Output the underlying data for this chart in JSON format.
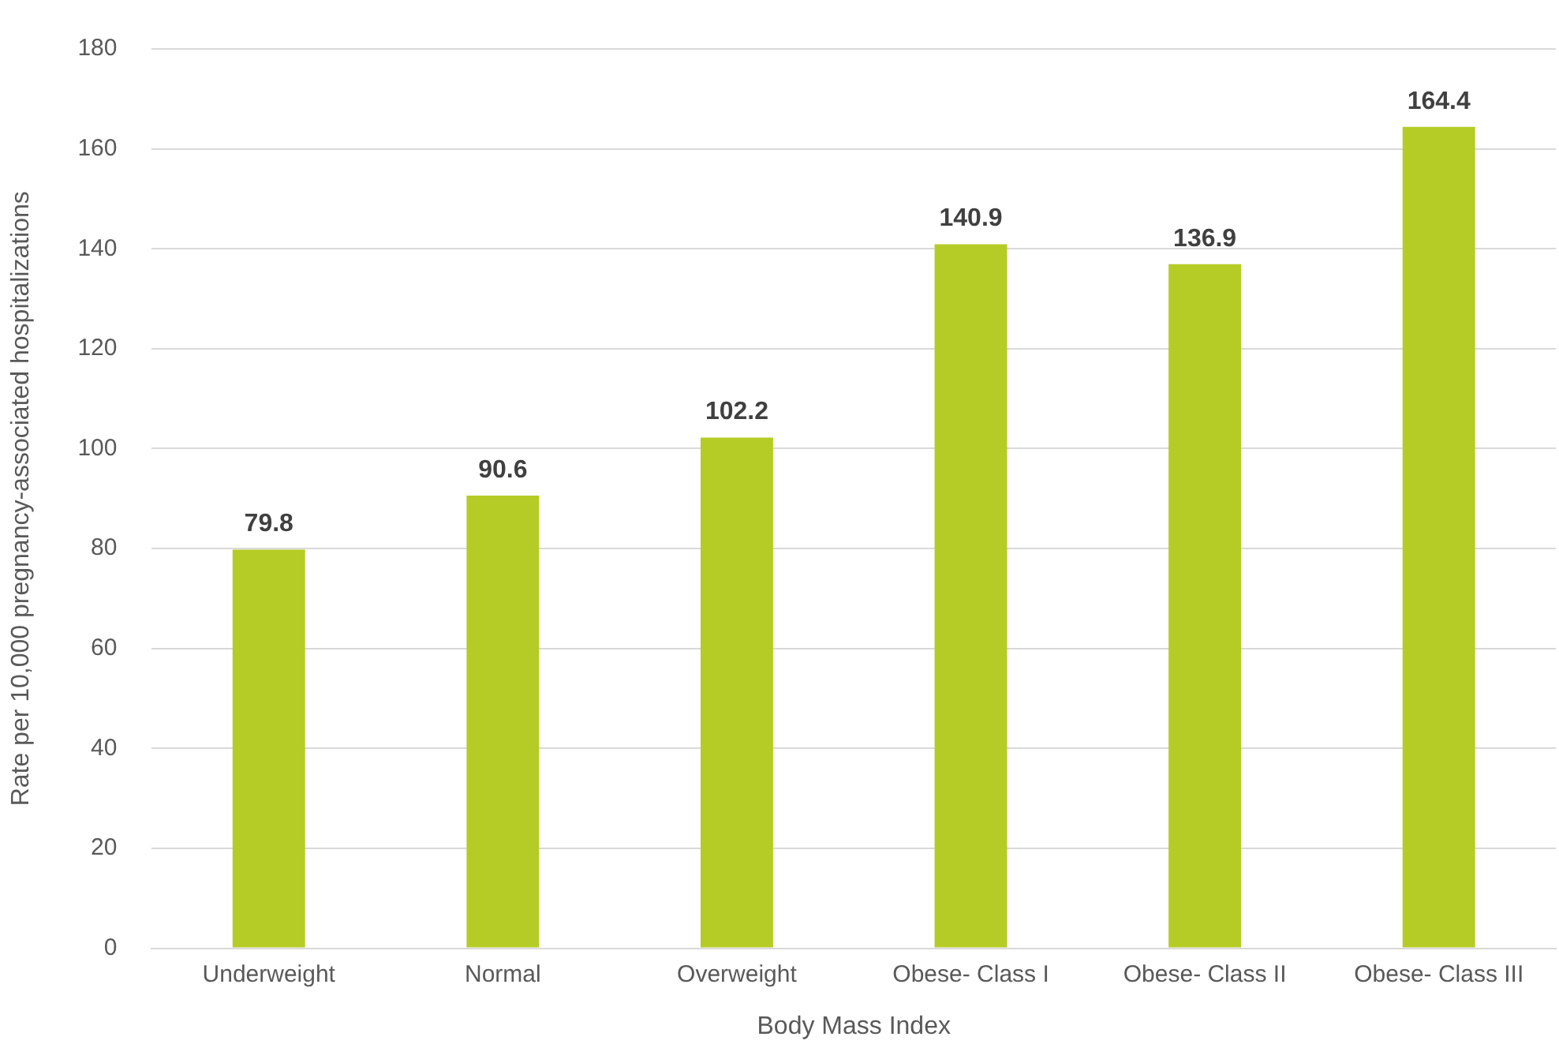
{
  "chart_data": {
    "type": "bar",
    "xlabel": "Body Mass Index",
    "ylabel": "Rate per 10,000 pregnancy-associated hospitalizations",
    "categories": [
      "Underweight",
      "Normal",
      "Overweight",
      "Obese- Class I",
      "Obese- Class II",
      "Obese- Class III"
    ],
    "values": [
      79.8,
      90.6,
      102.2,
      140.9,
      136.9,
      164.4
    ],
    "color": "#b5cc26",
    "ylim": [
      0,
      180
    ],
    "yticks": [
      0,
      20,
      40,
      60,
      80,
      100,
      120,
      140,
      160,
      180
    ],
    "grid": "y",
    "data_labels": true,
    "legend": false
  }
}
